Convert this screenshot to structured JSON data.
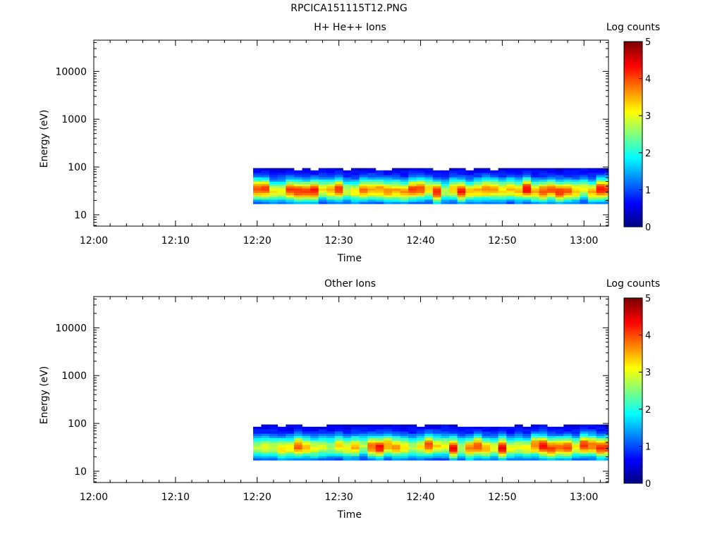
{
  "title": "RPCICA151115T12.PNG",
  "chart_data": [
    {
      "type": "heatmap",
      "title": "H+ He++ Ions",
      "xlabel": "Time",
      "ylabel": "Energy (eV)",
      "colorbar_label": "Log counts",
      "colorbar_ticks": [
        "0",
        "1",
        "2",
        "3",
        "4",
        "5"
      ],
      "clim": [
        0,
        5
      ],
      "x_ticks": [
        "12:00",
        "12:10",
        "12:20",
        "12:30",
        "12:40",
        "12:50",
        "13:00"
      ],
      "y_ticks": [
        "10",
        "100",
        "1000",
        "10000"
      ],
      "y_scale": "log",
      "ylim": [
        5.8,
        45000
      ],
      "xlim": [
        "12:00",
        "13:03"
      ],
      "data_start": "12:19.5",
      "data_end": "13:03",
      "energy_range": [
        17,
        95
      ],
      "peak_energy": 33,
      "peak_log_counts": 4.0,
      "grid": false
    },
    {
      "type": "heatmap",
      "title": "Other Ions",
      "xlabel": "Time",
      "ylabel": "Energy (eV)",
      "colorbar_label": "Log counts",
      "colorbar_ticks": [
        "0",
        "1",
        "2",
        "3",
        "4",
        "5"
      ],
      "clim": [
        0,
        5
      ],
      "x_ticks": [
        "12:00",
        "12:10",
        "12:20",
        "12:30",
        "12:40",
        "12:50",
        "13:00"
      ],
      "y_ticks": [
        "10",
        "100",
        "1000",
        "10000"
      ],
      "y_scale": "log",
      "ylim": [
        5.8,
        45000
      ],
      "xlim": [
        "12:00",
        "13:03"
      ],
      "data_start": "12:19.5",
      "data_end": "13:03",
      "energy_range": [
        17,
        95
      ],
      "peak_energy": 33,
      "peak_log_counts": 4.0,
      "grid": false
    }
  ]
}
